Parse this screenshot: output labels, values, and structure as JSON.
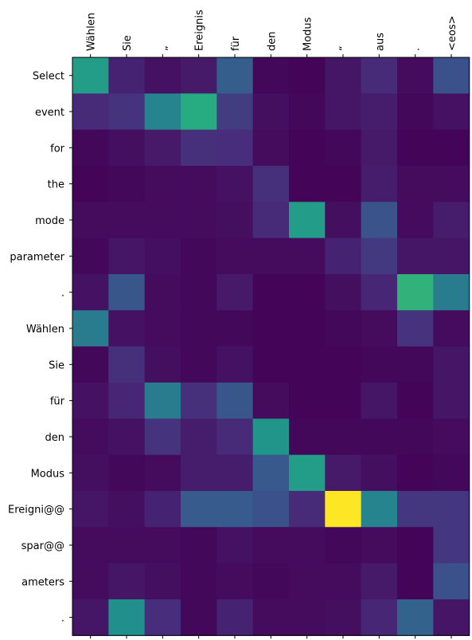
{
  "chart_data": {
    "type": "heatmap",
    "title": "",
    "xlabel": "",
    "ylabel": "",
    "x_labels": [
      "Wählen",
      "Sie",
      "„",
      "Ereignis",
      "für",
      "den",
      "Modus",
      "“",
      "aus",
      ".",
      "<eos>"
    ],
    "y_labels": [
      "Select",
      "event",
      "for",
      "the",
      "mode",
      "parameter",
      ".",
      "Wählen",
      "Sie",
      "für",
      "den",
      "Modus",
      "Ereigni@@",
      "spar@@",
      "ameters",
      "."
    ],
    "x_axis_position": "top",
    "colormap": "viridis",
    "value_range": [
      0,
      1
    ],
    "values": [
      [
        0.55,
        0.1,
        0.05,
        0.07,
        0.3,
        0.02,
        0.01,
        0.06,
        0.12,
        0.03,
        0.25
      ],
      [
        0.12,
        0.15,
        0.45,
        0.62,
        0.18,
        0.04,
        0.02,
        0.06,
        0.08,
        0.02,
        0.05
      ],
      [
        0.02,
        0.04,
        0.07,
        0.14,
        0.13,
        0.03,
        0.01,
        0.02,
        0.07,
        0.01,
        0.01
      ],
      [
        0.01,
        0.02,
        0.03,
        0.03,
        0.05,
        0.14,
        0.01,
        0.01,
        0.08,
        0.03,
        0.03
      ],
      [
        0.03,
        0.03,
        0.03,
        0.03,
        0.04,
        0.12,
        0.55,
        0.04,
        0.26,
        0.03,
        0.08
      ],
      [
        0.02,
        0.06,
        0.04,
        0.02,
        0.03,
        0.03,
        0.03,
        0.1,
        0.17,
        0.06,
        0.06
      ],
      [
        0.05,
        0.27,
        0.03,
        0.02,
        0.07,
        0.01,
        0.01,
        0.04,
        0.11,
        0.65,
        0.42
      ],
      [
        0.42,
        0.05,
        0.03,
        0.02,
        0.02,
        0.01,
        0.01,
        0.02,
        0.03,
        0.15,
        0.03
      ],
      [
        0.02,
        0.14,
        0.04,
        0.02,
        0.05,
        0.01,
        0.01,
        0.01,
        0.02,
        0.02,
        0.06
      ],
      [
        0.05,
        0.11,
        0.42,
        0.14,
        0.27,
        0.03,
        0.01,
        0.01,
        0.06,
        0.01,
        0.06
      ],
      [
        0.03,
        0.05,
        0.15,
        0.08,
        0.12,
        0.52,
        0.02,
        0.02,
        0.02,
        0.02,
        0.03
      ],
      [
        0.04,
        0.02,
        0.03,
        0.08,
        0.08,
        0.28,
        0.55,
        0.07,
        0.04,
        0.01,
        0.02
      ],
      [
        0.06,
        0.04,
        0.1,
        0.29,
        0.29,
        0.25,
        0.12,
        1.0,
        0.45,
        0.16,
        0.16
      ],
      [
        0.03,
        0.03,
        0.03,
        0.02,
        0.05,
        0.03,
        0.03,
        0.02,
        0.03,
        0.01,
        0.16
      ],
      [
        0.03,
        0.06,
        0.04,
        0.02,
        0.03,
        0.02,
        0.03,
        0.03,
        0.07,
        0.01,
        0.25
      ],
      [
        0.06,
        0.5,
        0.13,
        0.02,
        0.1,
        0.03,
        0.03,
        0.04,
        0.11,
        0.32,
        0.06
      ]
    ]
  }
}
